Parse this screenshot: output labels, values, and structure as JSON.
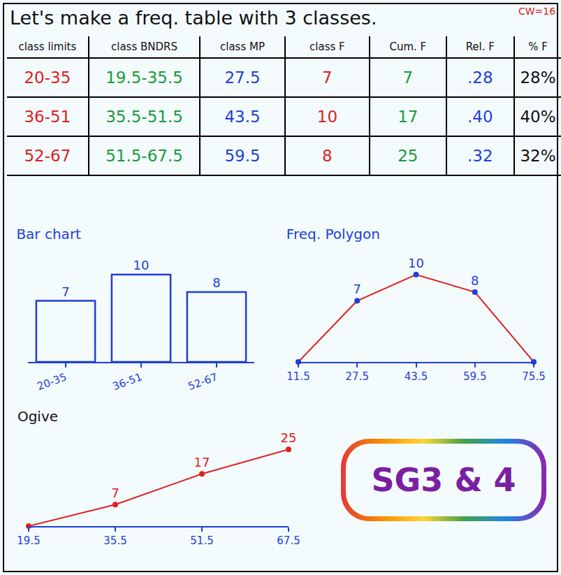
{
  "title": "Let's make a freq. table with 3 classes.",
  "note": "CW=16",
  "table": {
    "header": [
      "class limits",
      "class BNDRS",
      "class MP",
      "class F",
      "Cum. F",
      "Rel. F",
      "% F"
    ],
    "colors": [
      "#e02020",
      "#1a9a3a",
      "#1f3fd6",
      "#e02020",
      "#1a9a3a",
      "#1f3fd6",
      "#111111"
    ],
    "rows": [
      [
        "20-35",
        "19.5-35.5",
        "27.5",
        "7",
        "7",
        ".28",
        "28%"
      ],
      [
        "36-51",
        "35.5-51.5",
        "43.5",
        "10",
        "17",
        ".40",
        "40%"
      ],
      [
        "52-67",
        "51.5-67.5",
        "59.5",
        "8",
        "25",
        ".32",
        "32%"
      ]
    ]
  },
  "chart_data": [
    {
      "type": "bar",
      "title": "Bar chart",
      "categories": [
        "20-35",
        "36-51",
        "52-67"
      ],
      "values": [
        7,
        10,
        8
      ],
      "color": "#1f3fd6",
      "ylim": [
        0,
        12
      ],
      "data_labels": true,
      "tick_labels": "x",
      "grid": false
    },
    {
      "type": "line",
      "title": "Freq. Polygon",
      "x": [
        11.5,
        27.5,
        43.5,
        59.5,
        75.5
      ],
      "values": [
        0,
        7,
        10,
        8,
        0
      ],
      "value_labels": [
        null,
        "7",
        "10",
        "8",
        null
      ],
      "color": "#e02020",
      "marker": "circle",
      "xlim": [
        11.5,
        75.5
      ],
      "xticks": [
        11.5,
        27.5,
        43.5,
        59.5,
        75.5
      ],
      "ylim": [
        0,
        12
      ],
      "data_labels": true,
      "tick_labels": "x",
      "grid": false
    },
    {
      "type": "line",
      "title": "Ogive",
      "x": [
        19.5,
        35.5,
        51.5,
        67.5
      ],
      "values": [
        0,
        7,
        17,
        25
      ],
      "value_labels": [
        null,
        "7",
        "17",
        "25"
      ],
      "color": "#e02020",
      "marker": "circle",
      "xlim": [
        19.5,
        67.5
      ],
      "xticks": [
        19.5,
        35.5,
        51.5,
        67.5
      ],
      "ylim": [
        0,
        28
      ],
      "data_labels": true,
      "tick_labels": "x",
      "grid": false
    }
  ],
  "badge": "SG3 & 4"
}
